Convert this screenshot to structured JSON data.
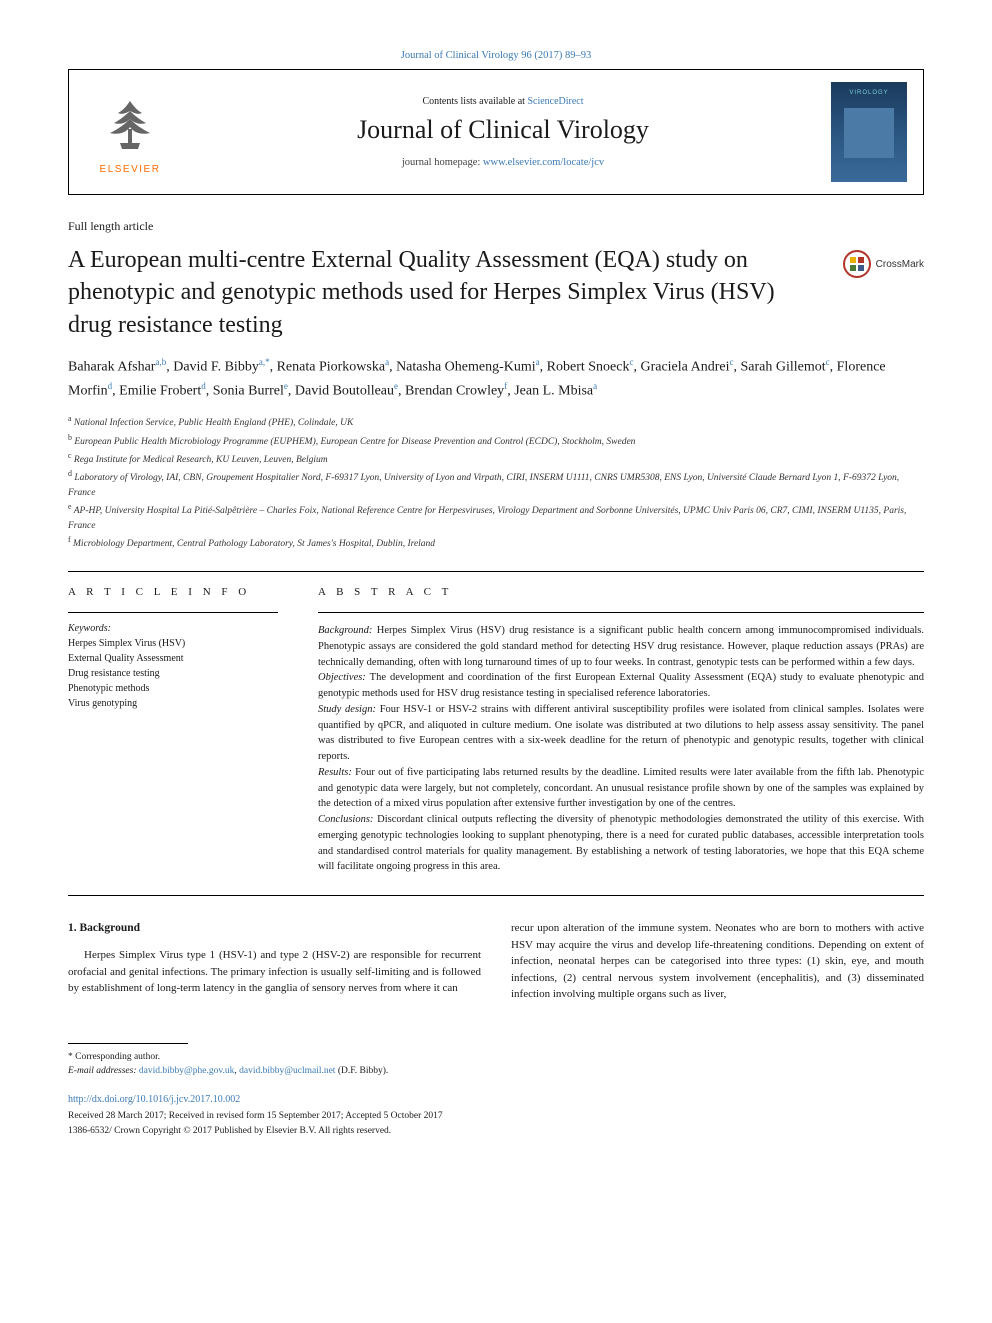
{
  "journal_ref": "Journal of Clinical Virology 96 (2017) 89–93",
  "header": {
    "contents_prefix": "Contents lists available at ",
    "contents_link": "ScienceDirect",
    "journal_name": "Journal of Clinical Virology",
    "homepage_prefix": "journal homepage: ",
    "homepage_url": "www.elsevier.com/locate/jcv",
    "elsevier": "ELSEVIER",
    "cover_title": "VIROLOGY"
  },
  "article_type": "Full length article",
  "title": "A European multi-centre External Quality Assessment (EQA) study on phenotypic and genotypic methods used for Herpes Simplex Virus (HSV) drug resistance testing",
  "crossmark": "CrossMark",
  "authors_html": "Baharak Afshar<sup>a,b</sup>, David F. Bibby<sup>a,*</sup>, Renata Piorkowska<sup>a</sup>, Natasha Ohemeng-Kumi<sup>a</sup>, Robert Snoeck<sup>c</sup>, Graciela Andrei<sup>c</sup>, Sarah Gillemot<sup>c</sup>, Florence Morfin<sup>d</sup>, Emilie Frobert<sup>d</sup>, Sonia Burrel<sup>e</sup>, David Boutolleau<sup>e</sup>, Brendan Crowley<sup>f</sup>, Jean L. Mbisa<sup>a</sup>",
  "affiliations": [
    "a National Infection Service, Public Health England (PHE), Colindale, UK",
    "b European Public Health Microbiology Programme (EUPHEM), European Centre for Disease Prevention and Control (ECDC), Stockholm, Sweden",
    "c Rega Institute for Medical Research, KU Leuven, Leuven, Belgium",
    "d Laboratory of Virology, IAI, CBN, Groupement Hospitalier Nord, F-69317 Lyon, University of Lyon and Virpath, CIRI, INSERM U1111, CNRS UMR5308, ENS Lyon, Université Claude Bernard Lyon 1, F-69372 Lyon, France",
    "e AP-HP, University Hospital La Pitié-Salpêtrière – Charles Foix, National Reference Centre for Herpesviruses, Virology Department and Sorbonne Universités, UPMC Univ Paris 06, CR7, CIMI, INSERM U1135, Paris, France",
    "f Microbiology Department, Central Pathology Laboratory, St James's Hospital, Dublin, Ireland"
  ],
  "article_info": {
    "heading": "A R T I C L E  I N F O",
    "keywords_label": "Keywords:",
    "keywords": [
      "Herpes Simplex Virus (HSV)",
      "External Quality Assessment",
      "Drug resistance testing",
      "Phenotypic methods",
      "Virus genotyping"
    ]
  },
  "abstract": {
    "heading": "A B S T R A C T",
    "sections": [
      {
        "label": "Background:",
        "text": " Herpes Simplex Virus (HSV) drug resistance is a significant public health concern among immunocompromised individuals. Phenotypic assays are considered the gold standard method for detecting HSV drug resistance. However, plaque reduction assays (PRAs) are technically demanding, often with long turnaround times of up to four weeks. In contrast, genotypic tests can be performed within a few days."
      },
      {
        "label": "Objectives:",
        "text": " The development and coordination of the first European External Quality Assessment (EQA) study to evaluate phenotypic and genotypic methods used for HSV drug resistance testing in specialised reference laboratories."
      },
      {
        "label": "Study design:",
        "text": " Four HSV-1 or HSV-2 strains with different antiviral susceptibility profiles were isolated from clinical samples. Isolates were quantified by qPCR, and aliquoted in culture medium. One isolate was distributed at two dilutions to help assess assay sensitivity. The panel was distributed to five European centres with a six-week deadline for the return of phenotypic and genotypic results, together with clinical reports."
      },
      {
        "label": "Results:",
        "text": " Four out of five participating labs returned results by the deadline. Limited results were later available from the fifth lab. Phenotypic and genotypic data were largely, but not completely, concordant. An unusual resistance profile shown by one of the samples was explained by the detection of a mixed virus population after extensive further investigation by one of the centres."
      },
      {
        "label": "Conclusions:",
        "text": " Discordant clinical outputs reflecting the diversity of phenotypic methodologies demonstrated the utility of this exercise. With emerging genotypic technologies looking to supplant phenotyping, there is a need for curated public databases, accessible interpretation tools and standardised control materials for quality management. By establishing a network of testing laboratories, we hope that this EQA scheme will facilitate ongoing progress in this area."
      }
    ]
  },
  "body": {
    "heading": "1. Background",
    "col1": "Herpes Simplex Virus type 1 (HSV-1) and type 2 (HSV-2) are responsible for recurrent orofacial and genital infections. The primary infection is usually self-limiting and is followed by establishment of long-term latency in the ganglia of sensory nerves from where it can",
    "col2": "recur upon alteration of the immune system. Neonates who are born to mothers with active HSV may acquire the virus and develop life-threatening conditions. Depending on extent of infection, neonatal herpes can be categorised into three types: (1) skin, eye, and mouth infections, (2) central nervous system involvement (encephalitis), and (3) disseminated infection involving multiple organs such as liver,"
  },
  "footer": {
    "corr": "* Corresponding author.",
    "email_label": "E-mail addresses: ",
    "email1": "david.bibby@phe.gov.uk",
    "email2": "david.bibby@uclmail.net",
    "email_suffix": " (D.F. Bibby).",
    "doi": "http://dx.doi.org/10.1016/j.jcv.2017.10.002",
    "received": "Received 28 March 2017; Received in revised form 15 September 2017; Accepted 5 October 2017",
    "copyright": "1386-6532/ Crown Copyright © 2017 Published by Elsevier B.V. All rights reserved."
  },
  "colors": {
    "link": "#3b7ab5",
    "elsevier_orange": "#ff6c00",
    "crossmark_red": "#b0342a",
    "text": "#1a1a1a",
    "cover_bg_top": "#1b3a5c",
    "cover_bg_bot": "#3a6a9a"
  },
  "typography": {
    "title_fontsize": 24,
    "journal_name_fontsize": 26,
    "authors_fontsize": 14,
    "body_fontsize": 11,
    "abstract_fontsize": 10.5,
    "affiliations_fontsize": 9.5
  }
}
